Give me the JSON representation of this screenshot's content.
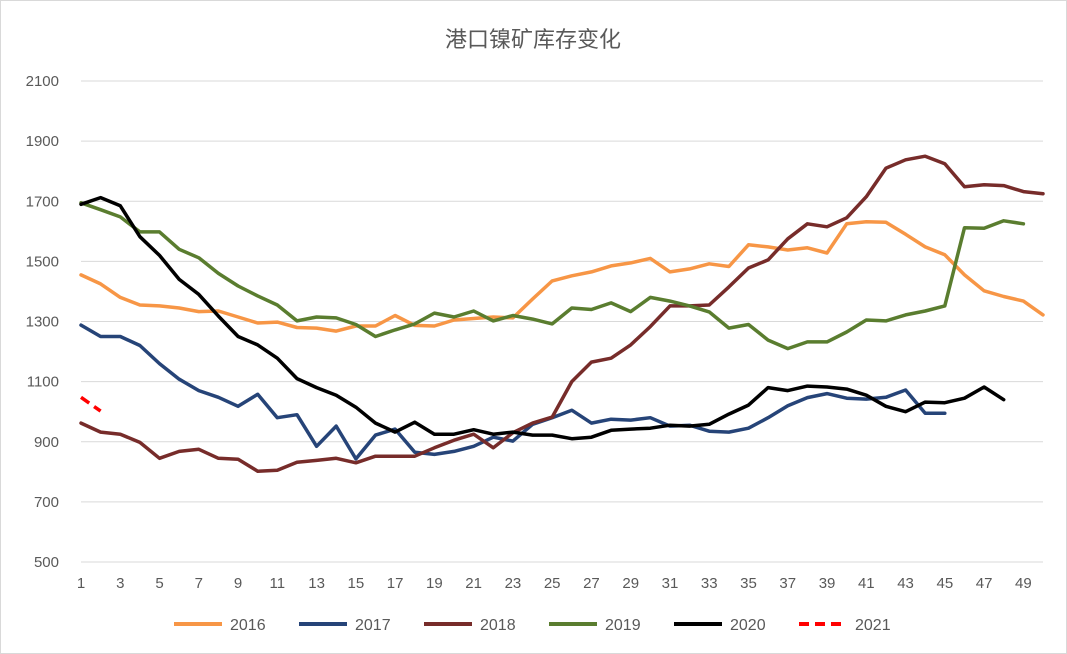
{
  "chart_data": {
    "type": "line",
    "title": "港口镍矿库存变化",
    "xlabel": "",
    "ylabel": "",
    "ylim": [
      500,
      2100
    ],
    "yticks": [
      500,
      700,
      900,
      1100,
      1300,
      1500,
      1700,
      1900,
      2100
    ],
    "xlim": [
      1,
      50
    ],
    "xticks": [
      1,
      3,
      5,
      7,
      9,
      11,
      13,
      15,
      17,
      19,
      21,
      23,
      25,
      27,
      29,
      31,
      33,
      35,
      37,
      39,
      41,
      43,
      45,
      47,
      49
    ],
    "grid": true,
    "legend_position": "bottom",
    "series": [
      {
        "name": "2016",
        "color": "#f79646",
        "dash": "solid",
        "x": [
          1,
          2,
          3,
          4,
          5,
          6,
          7,
          8,
          9,
          10,
          11,
          12,
          13,
          14,
          15,
          16,
          17,
          18,
          19,
          20,
          21,
          22,
          23,
          24,
          25,
          26,
          27,
          28,
          29,
          30,
          31,
          32,
          33,
          34,
          35,
          36,
          37,
          38,
          39,
          40,
          41,
          42,
          43,
          44,
          45,
          46,
          47,
          48,
          49,
          50
        ],
        "values": [
          1455,
          1425,
          1380,
          1355,
          1352,
          1345,
          1333,
          1335,
          1315,
          1295,
          1298,
          1280,
          1278,
          1268,
          1285,
          1285,
          1320,
          1287,
          1285,
          1305,
          1310,
          1315,
          1312,
          1375,
          1435,
          1452,
          1465,
          1485,
          1495,
          1510,
          1465,
          1475,
          1492,
          1483,
          1555,
          1548,
          1538,
          1545,
          1528,
          1625,
          1632,
          1630,
          1590,
          1548,
          1522,
          1455,
          1402,
          1383,
          1368,
          1322
        ]
      },
      {
        "name": "2017",
        "color": "#264478",
        "dash": "solid",
        "x": [
          1,
          2,
          3,
          4,
          5,
          6,
          7,
          8,
          9,
          10,
          11,
          12,
          13,
          14,
          15,
          16,
          17,
          18,
          19,
          20,
          21,
          22,
          23,
          24,
          25,
          26,
          27,
          28,
          29,
          30,
          31,
          32,
          33,
          34,
          35,
          36,
          37,
          38,
          39,
          40,
          41,
          42,
          43,
          44,
          45
        ],
        "values": [
          1288,
          1250,
          1250,
          1220,
          1160,
          1108,
          1070,
          1048,
          1018,
          1058,
          980,
          990,
          885,
          952,
          843,
          922,
          942,
          865,
          858,
          868,
          885,
          915,
          902,
          958,
          980,
          1005,
          962,
          975,
          972,
          980,
          952,
          955,
          935,
          932,
          945,
          980,
          1020,
          1047,
          1060,
          1045,
          1042,
          1048,
          1072,
          995,
          995
        ]
      },
      {
        "name": "2018",
        "color": "#772c2a",
        "dash": "solid",
        "x": [
          1,
          2,
          3,
          4,
          5,
          6,
          7,
          8,
          9,
          10,
          11,
          12,
          13,
          14,
          15,
          16,
          17,
          18,
          19,
          20,
          21,
          22,
          23,
          24,
          25,
          26,
          27,
          28,
          29,
          30,
          31,
          32,
          33,
          34,
          35,
          36,
          37,
          38,
          39,
          40,
          41,
          42,
          43,
          44,
          45,
          46,
          47,
          48,
          49,
          50
        ],
        "values": [
          962,
          932,
          925,
          898,
          845,
          868,
          875,
          845,
          842,
          802,
          805,
          832,
          838,
          845,
          830,
          852,
          852,
          852,
          880,
          905,
          925,
          880,
          930,
          962,
          982,
          1100,
          1165,
          1178,
          1222,
          1283,
          1352,
          1352,
          1355,
          1415,
          1478,
          1505,
          1575,
          1625,
          1615,
          1645,
          1715,
          1810,
          1838,
          1850,
          1825,
          1748,
          1755,
          1752,
          1732,
          1725
        ]
      },
      {
        "name": "2019",
        "color": "#5a7d2f",
        "dash": "solid",
        "x": [
          1,
          2,
          3,
          4,
          5,
          6,
          7,
          8,
          9,
          10,
          11,
          12,
          13,
          14,
          15,
          16,
          17,
          18,
          19,
          20,
          21,
          22,
          23,
          24,
          25,
          26,
          27,
          28,
          29,
          30,
          31,
          32,
          33,
          34,
          35,
          36,
          37,
          38,
          39,
          40,
          41,
          42,
          43,
          44,
          45,
          46,
          47,
          48,
          49
        ],
        "values": [
          1695,
          1672,
          1648,
          1598,
          1598,
          1540,
          1512,
          1460,
          1418,
          1385,
          1355,
          1302,
          1315,
          1312,
          1290,
          1250,
          1272,
          1292,
          1328,
          1315,
          1335,
          1302,
          1320,
          1308,
          1292,
          1345,
          1340,
          1362,
          1333,
          1380,
          1368,
          1352,
          1332,
          1278,
          1290,
          1238,
          1210,
          1232,
          1232,
          1265,
          1305,
          1302,
          1322,
          1335,
          1352,
          1612,
          1610,
          1635,
          1625
        ]
      },
      {
        "name": "2020",
        "color": "#000000",
        "dash": "solid",
        "x": [
          1,
          2,
          3,
          4,
          5,
          6,
          7,
          8,
          9,
          10,
          11,
          12,
          13,
          14,
          15,
          16,
          17,
          18,
          19,
          20,
          21,
          22,
          23,
          24,
          25,
          26,
          27,
          28,
          29,
          30,
          31,
          32,
          33,
          34,
          35,
          36,
          37,
          38,
          39,
          40,
          41,
          42,
          43,
          44,
          45,
          46,
          47,
          48
        ],
        "values": [
          1690,
          1712,
          1685,
          1582,
          1520,
          1440,
          1390,
          1318,
          1250,
          1222,
          1178,
          1110,
          1080,
          1055,
          1015,
          962,
          932,
          965,
          925,
          925,
          940,
          925,
          932,
          922,
          922,
          910,
          915,
          938,
          942,
          945,
          955,
          952,
          958,
          992,
          1022,
          1080,
          1070,
          1085,
          1082,
          1075,
          1055,
          1018,
          1000,
          1032,
          1030,
          1045,
          1082,
          1040
        ]
      },
      {
        "name": "2021",
        "color": "#ff0000",
        "dash": "dashed",
        "x": [
          1,
          2
        ],
        "values": [
          1048,
          1002
        ]
      }
    ]
  }
}
